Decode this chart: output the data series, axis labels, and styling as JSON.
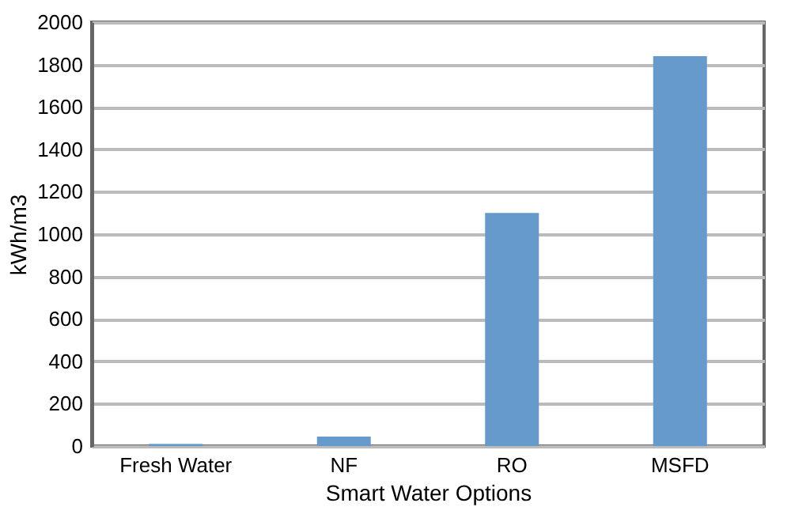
{
  "chart_data": {
    "type": "bar",
    "xlabel": "Smart Water Options",
    "ylabel": "kWh/m3",
    "categories": [
      "Fresh Water",
      "NF",
      "RO",
      "MSFD"
    ],
    "values": [
      10,
      45,
      1100,
      1840
    ],
    "color": "#6699cc",
    "ylim": [
      0,
      2000
    ],
    "yticks": [
      0,
      200,
      400,
      600,
      800,
      1000,
      1200,
      1400,
      1600,
      1800,
      2000
    ],
    "grid": "y"
  }
}
